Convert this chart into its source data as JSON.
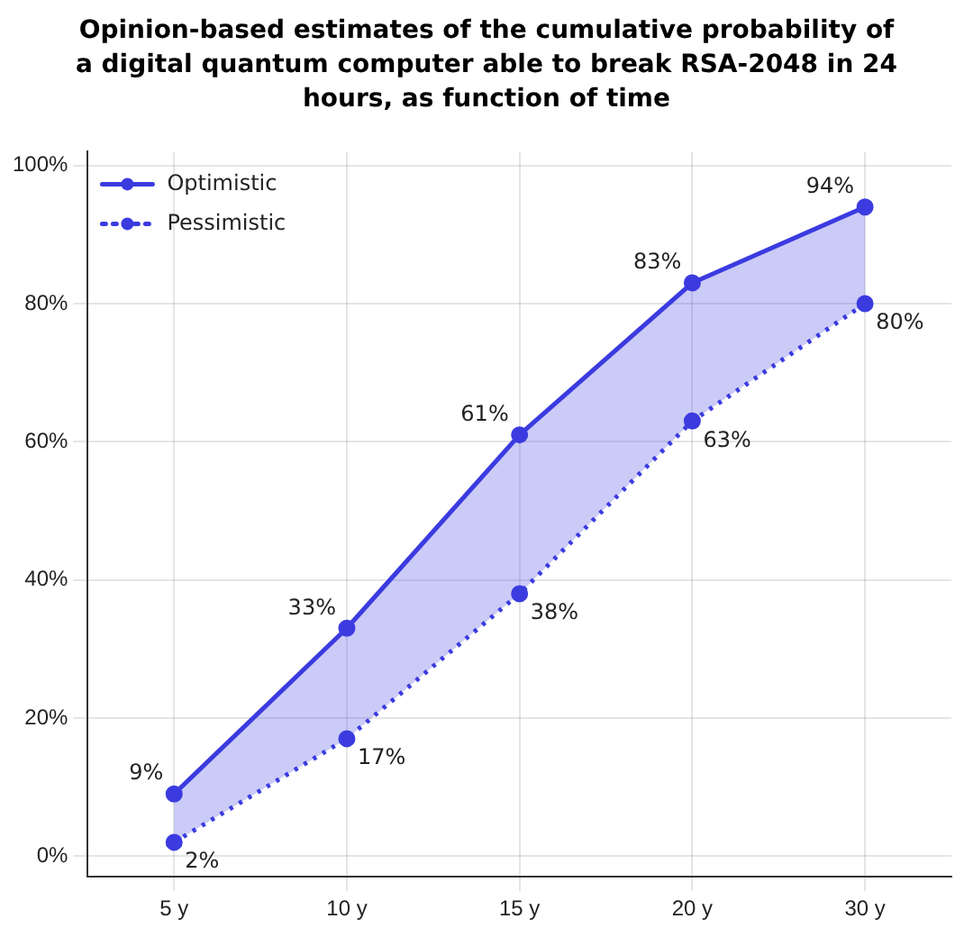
{
  "chart_data": {
    "type": "line",
    "title": "Opinion-based estimates of the cumulative probability of a digital quantum computer able to break RSA-2048 in 24 hours, as function of time",
    "categories": [
      "5 y",
      "10 y",
      "15 y",
      "20 y",
      "30 y"
    ],
    "series": [
      {
        "name": "Optimistic",
        "color": "#3b3be0",
        "values": [
          9,
          33,
          61,
          83,
          94
        ],
        "lower": [
          2,
          17,
          38,
          63,
          80
        ],
        "upper": [
          9,
          33,
          61,
          83,
          94
        ],
        "value_labels": [
          "9%",
          "33%",
          "61%",
          "83%",
          "94%"
        ],
        "line_style": "solid"
      },
      {
        "name": "Pessimistic",
        "color": "#3b3be0",
        "values": [
          2,
          17,
          38,
          63,
          80
        ],
        "value_labels": [
          "2%",
          "17%",
          "38%",
          "63%",
          "80%"
        ],
        "line_style": "dotted"
      }
    ],
    "ylim": [
      -3,
      102
    ],
    "yticks": [
      {
        "value": 0,
        "label": "0%"
      },
      {
        "value": 20,
        "label": "20%"
      },
      {
        "value": 40,
        "label": "40%"
      },
      {
        "value": 60,
        "label": "60%"
      },
      {
        "value": 80,
        "label": "80%"
      },
      {
        "value": 100,
        "label": "100%"
      }
    ],
    "grid": true,
    "legend": "top left",
    "marker": "circle"
  }
}
